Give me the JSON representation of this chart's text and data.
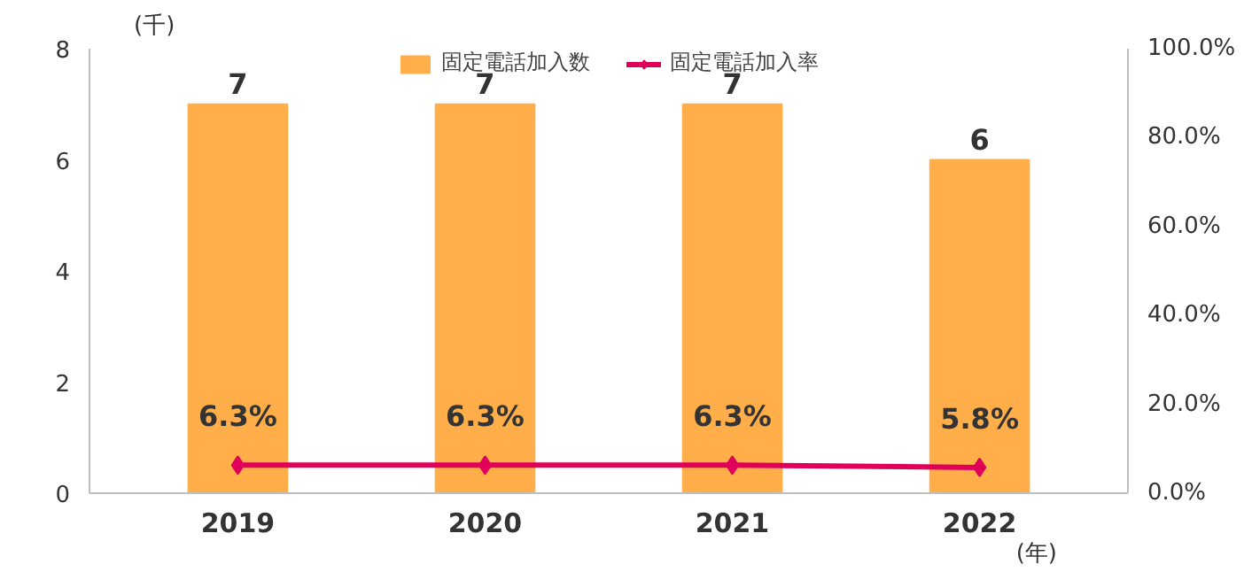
{
  "chart_data": {
    "type": "bar",
    "categories": [
      "2019",
      "2020",
      "2021",
      "2022"
    ],
    "xlabel": "(年)",
    "ylabel": "(千)",
    "ylim": [
      0,
      8
    ],
    "yticks": [
      0,
      2,
      4,
      6,
      8
    ],
    "y2lim": [
      0,
      100
    ],
    "y2ticks": [
      {
        "value": 0,
        "label": "0.0%"
      },
      {
        "value": 20,
        "label": "20.0%"
      },
      {
        "value": 40,
        "label": "40.0%"
      },
      {
        "value": 60,
        "label": "60.0%"
      },
      {
        "value": 80,
        "label": "80.0%"
      },
      {
        "value": 100,
        "label": "100.0%"
      }
    ],
    "series": [
      {
        "name": "固定電話加入数",
        "color": "#ffae4a",
        "values": [
          7,
          7,
          7,
          6
        ],
        "value_labels": [
          "7",
          "7",
          "7",
          "6"
        ]
      },
      {
        "name": "固定電話加入率",
        "type": "line",
        "axis": "y2",
        "color": "#e0005a",
        "marker": "diamond",
        "values": [
          6.3,
          6.3,
          6.3,
          5.8
        ],
        "value_labels": [
          "6.3%",
          "6.3%",
          "6.3%",
          "5.8%"
        ]
      }
    ],
    "legend": "top",
    "grid": false
  }
}
